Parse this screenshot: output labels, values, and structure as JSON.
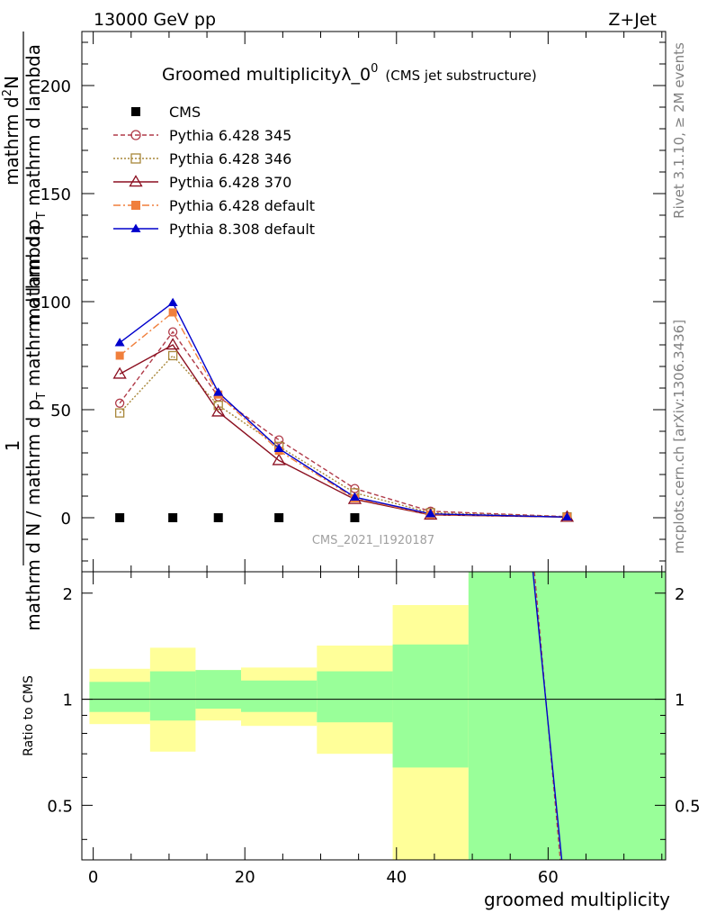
{
  "header": {
    "left": "13000 GeV pp",
    "right": "Z+Jet"
  },
  "side_text": {
    "rivet": "Rivet 3.1.10, ≥ 2M events",
    "mcplots": "mcplots.cern.ch [arXiv:1306.3436]"
  },
  "chart_data": {
    "type": "line",
    "title": "Groomed multiplicityλ_0",
    "title_sup": "0",
    "title_small": "(CMS jet substructure)",
    "analysis_id": "CMS_2021_I1920187",
    "ylabel_top": "1",
    "ylabel_bottom": "mathrm d N / mathrm d p",
    "ylabel_bottom_sub": "T",
    "ylabel_bottom_tail": " mathrm d lambda",
    "ylabel_numerator": "mathrm d",
    "ylabel_numerator_sup": "2",
    "ylabel_numerator_tail": "N",
    "ylabel_denominator": "mathrm d p",
    "ylabel_denominator_sub": "T",
    "ylabel_denominator_tail": " mathrm d lambda",
    "xlabel": "groomed multiplicity",
    "ratio_ylabel": "Ratio to CMS",
    "xlim": [
      -1.5,
      75.5
    ],
    "ylim": [
      -25,
      225
    ],
    "ratio_ylim": [
      0.35,
      2.3
    ],
    "x_ticks": [
      "0",
      "20",
      "40",
      "60"
    ],
    "y_ticks": [
      "0",
      "50",
      "100",
      "150",
      "200"
    ],
    "ratio_ticks": [
      "0.5",
      "1",
      "2"
    ],
    "x": [
      3.5,
      10.5,
      16.5,
      24.5,
      34.5,
      44.5,
      62.5
    ],
    "bins": [
      [
        -0.5,
        7.5
      ],
      [
        7.5,
        13.5
      ],
      [
        13.5,
        19.5
      ],
      [
        19.5,
        29.5
      ],
      [
        29.5,
        39.5
      ],
      [
        39.5,
        49.5
      ],
      [
        49.5,
        75.5
      ]
    ],
    "cms": [
      0,
      0,
      0,
      0,
      0,
      0,
      0
    ],
    "series": [
      {
        "name": "CMS",
        "color": "#000000",
        "dash": "",
        "marker": "square-filled",
        "values": [
          0,
          0,
          0,
          0,
          0,
          null,
          null
        ]
      },
      {
        "name": "Pythia 6.428 345",
        "color": "#b03a48",
        "dash": "5,3",
        "marker": "circle-open",
        "values": [
          53,
          86,
          56,
          36,
          13.5,
          3,
          0.5
        ]
      },
      {
        "name": "Pythia 6.428 346",
        "color": "#a8873a",
        "dash": "2,2",
        "marker": "square-open",
        "values": [
          48.5,
          75,
          52,
          33,
          11.5,
          2.3,
          0.4
        ]
      },
      {
        "name": "Pythia 6.428 370",
        "color": "#8b0f20",
        "dash": "",
        "marker": "triangle-open",
        "values": [
          66.5,
          80,
          49,
          26.5,
          8.5,
          1.3,
          0.3
        ]
      },
      {
        "name": "Pythia 6.428 default",
        "color": "#f07f3c",
        "dash": "8,3,2,3",
        "marker": "square-filled",
        "values": [
          75,
          95,
          57,
          31,
          9,
          1.5,
          0.3
        ]
      },
      {
        "name": "Pythia 8.308 default",
        "color": "#0000cc",
        "dash": "",
        "marker": "triangle-filled",
        "values": [
          81,
          99.5,
          58,
          32,
          9.5,
          1.8,
          0.3
        ]
      }
    ],
    "ratio_band_yellow": [
      [
        0.85,
        1.22
      ],
      [
        0.71,
        1.4
      ],
      [
        0.87,
        1.21
      ],
      [
        0.84,
        1.23
      ],
      [
        0.7,
        1.42
      ],
      [
        0.0,
        1.85
      ],
      [
        0.0,
        3.0
      ]
    ],
    "ratio_band_green": [
      [
        0.92,
        1.12
      ],
      [
        0.87,
        1.2
      ],
      [
        0.94,
        1.21
      ],
      [
        0.92,
        1.13
      ],
      [
        0.86,
        1.2
      ],
      [
        0.64,
        1.43
      ],
      [
        0.0,
        3.0
      ]
    ],
    "ratio_line_blue": [
      [
        58.0,
        2.3
      ],
      [
        61.8,
        0.35
      ]
    ],
    "ratio_line_red": [
      [
        58.2,
        2.3
      ],
      [
        61.6,
        0.35
      ]
    ]
  }
}
